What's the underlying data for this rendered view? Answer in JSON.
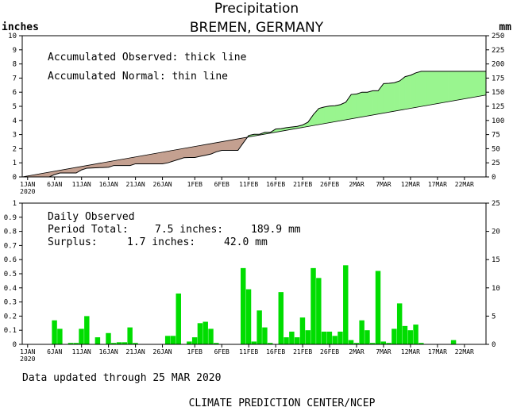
{
  "header": {
    "title": "Precipitation",
    "subtitle": "BREMEN, GERMANY",
    "left_unit": "inches",
    "right_unit": "mm"
  },
  "chart_data": [
    {
      "type": "area",
      "panel": "accumulated",
      "annotations": [
        "Accumulated Observed: thick line",
        "Accumulated Normal: thin line"
      ],
      "x_tick_labels": [
        "1JAN",
        "6JAN",
        "11JAN",
        "16JAN",
        "21JAN",
        "26JAN",
        "1FEB",
        "6FEB",
        "11FEB",
        "16FEB",
        "21FEB",
        "26FEB",
        "2MAR",
        "7MAR",
        "12MAR",
        "17MAR",
        "22MAR"
      ],
      "x_tick_days": [
        1,
        6,
        11,
        16,
        21,
        26,
        32,
        37,
        42,
        47,
        52,
        57,
        62,
        67,
        72,
        77,
        82
      ],
      "x_year_label": "2020",
      "xlim": [
        0,
        86
      ],
      "ylim_inches": [
        0,
        10
      ],
      "ylim_mm": [
        0,
        250
      ],
      "y_ticks_inches": [
        0,
        1,
        2,
        3,
        4,
        5,
        6,
        7,
        8,
        9,
        10
      ],
      "y_ticks_mm": [
        0,
        25,
        50,
        75,
        100,
        125,
        150,
        175,
        200,
        225,
        250
      ],
      "surplus_color": "#99f58f",
      "deficit_color": "#c4a090",
      "series": [
        {
          "line": "thick",
          "x": [
            0,
            5,
            6,
            7,
            10,
            11,
            12,
            15,
            16,
            17,
            20,
            21,
            22,
            25,
            26,
            27,
            30,
            31,
            32,
            34,
            35,
            36,
            37,
            40,
            41,
            42,
            43,
            44,
            45,
            46,
            47,
            48,
            49,
            51,
            52,
            53,
            54,
            55,
            56,
            57,
            58,
            59,
            60,
            61,
            62,
            63,
            64,
            65,
            66,
            67,
            68,
            69,
            70,
            71,
            72,
            73,
            74,
            75,
            79,
            86
          ],
          "y": [
            0,
            0,
            0.17,
            0.28,
            0.28,
            0.5,
            0.62,
            0.67,
            0.69,
            0.81,
            0.81,
            0.93,
            0.93,
            0.93,
            0.93,
            1.0,
            1.36,
            1.38,
            1.38,
            1.54,
            1.62,
            1.78,
            1.88,
            1.88,
            2.42,
            2.94,
            3.02,
            3.02,
            3.16,
            3.16,
            3.39,
            3.42,
            3.49,
            3.58,
            3.68,
            3.88,
            4.42,
            4.85,
            4.95,
            5.02,
            5.04,
            5.12,
            5.29,
            5.84,
            5.87,
            6.0,
            6.0,
            6.1,
            6.1,
            6.61,
            6.63,
            6.67,
            6.8,
            7.1,
            7.2,
            7.37,
            7.48,
            7.48,
            7.48,
            7.48
          ]
        },
        {
          "line": "thin",
          "x": [
            0,
            86
          ],
          "y": [
            0,
            5.8
          ]
        }
      ]
    },
    {
      "type": "bar",
      "panel": "daily",
      "annotations": [
        "Daily Observed"
      ],
      "period_total_label": "Period Total:",
      "period_total_inches": "7.5 inches:",
      "period_total_mm": "189.9 mm",
      "surplus_label": "Surplus:",
      "surplus_inches": "1.7 inches:",
      "surplus_mm": "42.0 mm",
      "x_tick_labels": [
        "1JAN",
        "6JAN",
        "11JAN",
        "16JAN",
        "21JAN",
        "26JAN",
        "1FEB",
        "6FEB",
        "11FEB",
        "16FEB",
        "21FEB",
        "26FEB",
        "2MAR",
        "7MAR",
        "12MAR",
        "17MAR",
        "22MAR"
      ],
      "x_year_label": "2020",
      "xlim": [
        0,
        86
      ],
      "ylim_inches": [
        0,
        1
      ],
      "ylim_mm": [
        0,
        25
      ],
      "y_ticks_inches": [
        0,
        0.1,
        0.2,
        0.3,
        0.4,
        0.5,
        0.6,
        0.7,
        0.8,
        0.9,
        1
      ],
      "y_ticks_mm": [
        0,
        5,
        10,
        15,
        20,
        25
      ],
      "bar_color": "#00dd00",
      "days": [
        6,
        7,
        9,
        10,
        11,
        12,
        14,
        16,
        17,
        18,
        19,
        20,
        21,
        27,
        28,
        29,
        31,
        32,
        33,
        34,
        35,
        36,
        41,
        42,
        43,
        44,
        45,
        46,
        48,
        49,
        50,
        51,
        52,
        53,
        54,
        55,
        56,
        57,
        58,
        59,
        60,
        61,
        62,
        63,
        64,
        65,
        66,
        67,
        68,
        69,
        70,
        71,
        72,
        73,
        74,
        80
      ],
      "values": [
        0.17,
        0.11,
        0.01,
        0.01,
        0.11,
        0.2,
        0.05,
        0.08,
        0.01,
        0.015,
        0.015,
        0.12,
        0.01,
        0.06,
        0.06,
        0.36,
        0.02,
        0.05,
        0.15,
        0.16,
        0.11,
        0.01,
        0.54,
        0.39,
        0.02,
        0.24,
        0.12,
        0.01,
        0.37,
        0.05,
        0.09,
        0.05,
        0.19,
        0.1,
        0.54,
        0.47,
        0.09,
        0.09,
        0.06,
        0.09,
        0.56,
        0.03,
        0.01,
        0.17,
        0.1,
        0.01,
        0.52,
        0.02,
        0.01,
        0.11,
        0.29,
        0.13,
        0.1,
        0.14,
        0.01,
        0.03
      ]
    }
  ],
  "footer": {
    "updated": "Data updated through 25 MAR 2020",
    "credit": "CLIMATE PREDICTION CENTER/NCEP"
  }
}
